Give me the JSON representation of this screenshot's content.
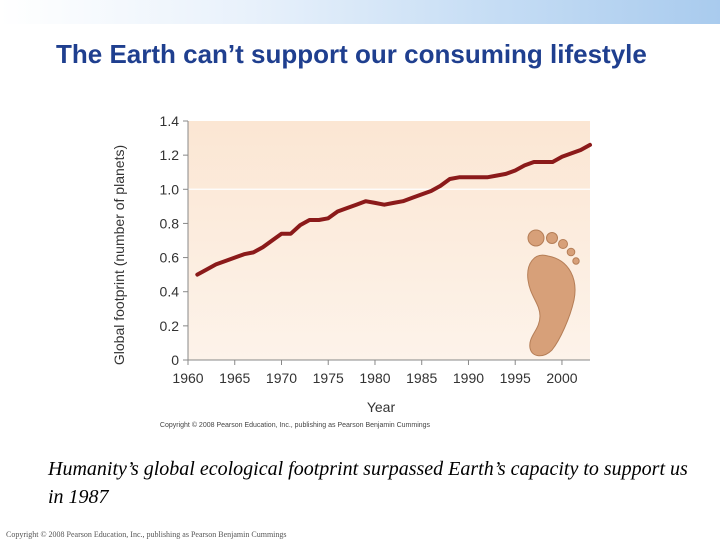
{
  "slide": {
    "title": "The Earth can’t support our consuming lifestyle",
    "caption": "Humanity’s global ecological footprint surpassed Earth’s capacity to support us in 1987",
    "footer": "Copyright © 2008 Pearson Education, Inc., publishing as Pearson Benjamin Cummings"
  },
  "chart_data": {
    "type": "line",
    "title": "",
    "xlabel": "Year",
    "ylabel": "Global footprint (number of planets)",
    "xlim": [
      1960,
      2003
    ],
    "ylim": [
      0,
      1.4
    ],
    "x_ticks": [
      1960,
      1965,
      1970,
      1975,
      1980,
      1985,
      1990,
      1995,
      2000
    ],
    "x_tick_labels": [
      "1960",
      "1965",
      "1970",
      "1975",
      "1980",
      "1985",
      "1990",
      "1995",
      "2000"
    ],
    "y_ticks": [
      0,
      0.2,
      0.4,
      0.6,
      0.8,
      1.0,
      1.2,
      1.4
    ],
    "y_tick_labels": [
      "0",
      "0.2",
      "0.4",
      "0.6",
      "0.8",
      "1.0",
      "1.2",
      "1.4"
    ],
    "reference_line": 1.0,
    "copyright": "Copyright © 2008 Pearson Education, Inc., publishing as Pearson Benjamin Cummings",
    "series": [
      {
        "name": "Global footprint",
        "x": [
          1961,
          1962,
          1963,
          1964,
          1965,
          1966,
          1967,
          1968,
          1969,
          1970,
          1971,
          1972,
          1973,
          1974,
          1975,
          1976,
          1977,
          1978,
          1979,
          1980,
          1981,
          1982,
          1983,
          1984,
          1985,
          1986,
          1987,
          1988,
          1989,
          1990,
          1991,
          1992,
          1993,
          1994,
          1995,
          1996,
          1997,
          1998,
          1999,
          2000,
          2001,
          2002,
          2003
        ],
        "values": [
          0.5,
          0.53,
          0.56,
          0.58,
          0.6,
          0.62,
          0.63,
          0.66,
          0.7,
          0.74,
          0.74,
          0.79,
          0.82,
          0.82,
          0.83,
          0.87,
          0.89,
          0.91,
          0.93,
          0.92,
          0.91,
          0.92,
          0.93,
          0.95,
          0.97,
          0.99,
          1.02,
          1.06,
          1.07,
          1.07,
          1.07,
          1.07,
          1.08,
          1.09,
          1.11,
          1.14,
          1.16,
          1.16,
          1.16,
          1.19,
          1.21,
          1.23,
          1.26
        ],
        "color": "#8b1a1a"
      }
    ],
    "colors": {
      "plot_bg_top": "#fbe6d3",
      "plot_bg_bottom": "#fdf3ea",
      "footprint": "#d7a079",
      "footprint_edge": "#b57e57"
    }
  }
}
